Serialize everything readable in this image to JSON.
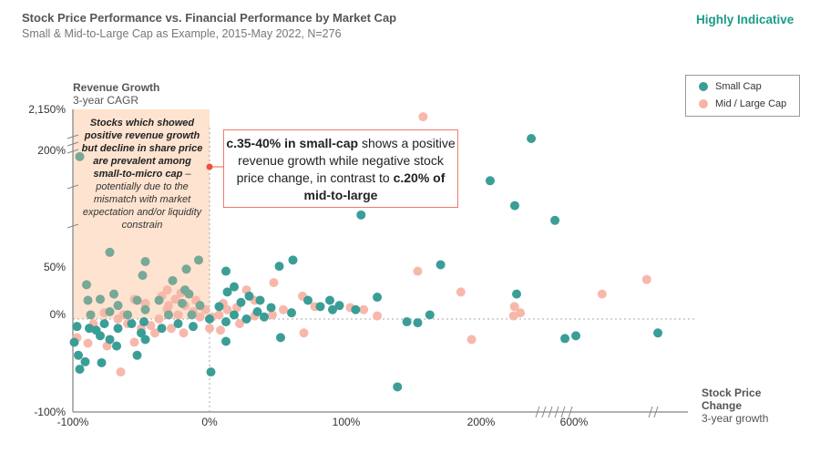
{
  "header": {
    "title": "Stock Price Performance vs. Financial Performance by Market Cap",
    "subtitle": "Small & Mid-to-Large Cap as Example, 2015-May 2022, N=276",
    "badge": "Highly Indicative"
  },
  "colors": {
    "small_cap": "#3a9e96",
    "mid_large_cap": "#f7b4a6",
    "shade": "#fde3d0",
    "callout_border": "#f07a68",
    "badge": "#1a9a8a"
  },
  "note": {
    "bold": "Stocks which showed positive revenue growth but decline in share price are prevalent among small-to-micro cap",
    "rest": " – potentially due to the mismatch with market expectation and/or liquidity constrain"
  },
  "callout": {
    "p1": "c.35-40% in small-cap",
    "p2": " shows a positive revenue growth while negative stock price change, in contrast to ",
    "p3": "c.20% of mid-to-large"
  },
  "chart_data": {
    "type": "scatter",
    "title": "Stock Price Performance vs. Financial Performance by Market Cap",
    "ylabel": "Revenue Growth",
    "ylabel_sub": "3-year CAGR",
    "xlabel": "Stock Price Change",
    "xlabel_sub": "3-year growth",
    "x_ticks": [
      "-100%",
      "0%",
      "100%",
      "200%",
      "600%"
    ],
    "x_tick_values": [
      -100,
      0,
      100,
      200,
      600
    ],
    "y_ticks": [
      "2,150%",
      "200%",
      "50%",
      "0%",
      "-100%"
    ],
    "y_tick_values": [
      2150,
      200,
      50,
      0,
      -100
    ],
    "x_axis_breaks": "between 200% and 600%, and after 600%",
    "y_axis_breaks": "between 50% and 200%, and between 200% and 2,150%",
    "shaded_region": "x<0%, y>0%",
    "legend": {
      "placement": "top-right",
      "entries": [
        "Small Cap",
        "Mid / Large Cap"
      ]
    },
    "series": [
      {
        "name": "Small Cap",
        "color": "#3a9e96",
        "points": [
          [
            416,
            763
          ],
          [
            239,
            161
          ],
          [
            345,
            129
          ],
          [
            518,
            110
          ],
          [
            111,
            117
          ],
          [
            170,
            53
          ],
          [
            61,
            59
          ],
          [
            51,
            51
          ],
          [
            353,
            24
          ],
          [
            123,
            21
          ],
          [
            88,
            18
          ],
          [
            107,
            9
          ],
          [
            153,
            -4
          ],
          [
            145,
            -3
          ],
          [
            162,
            4
          ],
          [
            561,
            -21
          ],
          [
            608,
            -18
          ],
          [
            961,
            -15
          ],
          [
            138,
            -73
          ],
          [
            52,
            -20
          ],
          [
            12,
            -24
          ],
          [
            1,
            -57
          ],
          [
            12,
            46
          ],
          [
            18,
            31
          ],
          [
            13,
            26
          ],
          [
            29,
            22
          ],
          [
            37,
            18
          ],
          [
            45,
            11
          ],
          [
            60,
            6
          ],
          [
            72,
            18
          ],
          [
            81,
            12
          ],
          [
            90,
            9
          ],
          [
            95,
            13
          ],
          [
            7,
            12
          ],
          [
            18,
            4
          ],
          [
            27,
            0
          ],
          [
            12,
            -3
          ],
          [
            40,
            2
          ],
          [
            23,
            16
          ],
          [
            35,
            7
          ],
          [
            -95,
            192
          ],
          [
            -73,
            69
          ],
          [
            -49,
            42
          ],
          [
            -8,
            59
          ],
          [
            -27,
            37
          ],
          [
            -47,
            57
          ],
          [
            -17,
            48
          ],
          [
            -90,
            33
          ],
          [
            -70,
            24
          ],
          [
            -15,
            24
          ],
          [
            -18,
            28
          ],
          [
            -89,
            18
          ],
          [
            -80,
            19
          ],
          [
            -67,
            13
          ],
          [
            -53,
            18
          ],
          [
            -37,
            18
          ],
          [
            -20,
            15
          ],
          [
            -7,
            13
          ],
          [
            -87,
            4
          ],
          [
            -73,
            7
          ],
          [
            -60,
            4
          ],
          [
            -47,
            9
          ],
          [
            -30,
            4
          ],
          [
            -13,
            4
          ],
          [
            -97,
            -8
          ],
          [
            -88,
            -10
          ],
          [
            -83,
            -12
          ],
          [
            -80,
            -18
          ],
          [
            -77,
            -5
          ],
          [
            -73,
            -22
          ],
          [
            -68,
            -29
          ],
          [
            -99,
            -25
          ],
          [
            -96,
            -39
          ],
          [
            -91,
            -46
          ],
          [
            -95,
            -54
          ],
          [
            -79,
            -47
          ],
          [
            -67,
            -10
          ],
          [
            -50,
            -15
          ],
          [
            -47,
            -22
          ],
          [
            -53,
            -39
          ],
          [
            -35,
            -10
          ],
          [
            -23,
            -5
          ],
          [
            -12,
            -8
          ],
          [
            -48,
            -3
          ],
          [
            -57,
            -5
          ],
          [
            0,
            0
          ]
        ]
      },
      {
        "name": "Mid / Large Cap",
        "color": "#f7b4a6",
        "points": [
          [
            157,
            1800
          ],
          [
            153,
            46
          ],
          [
            185,
            26
          ],
          [
            721,
            24
          ],
          [
            913,
            38
          ],
          [
            369,
            6
          ],
          [
            344,
            12
          ],
          [
            340,
            3
          ],
          [
            193,
            -22
          ],
          [
            123,
            3
          ],
          [
            113,
            9
          ],
          [
            103,
            11
          ],
          [
            77,
            12
          ],
          [
            68,
            22
          ],
          [
            54,
            9
          ],
          [
            47,
            35
          ],
          [
            46,
            4
          ],
          [
            69,
            -15
          ],
          [
            33,
            3
          ],
          [
            27,
            28
          ],
          [
            33,
            18
          ],
          [
            10,
            15
          ],
          [
            13,
            9
          ],
          [
            7,
            4
          ],
          [
            22,
            -5
          ],
          [
            8,
            -12
          ],
          [
            20,
            11
          ],
          [
            2,
            2
          ],
          [
            -97,
            -20
          ],
          [
            -89,
            -26
          ],
          [
            -85,
            -5
          ],
          [
            -77,
            6
          ],
          [
            -67,
            0
          ],
          [
            -60,
            -5
          ],
          [
            -75,
            -29
          ],
          [
            -65,
            -57
          ],
          [
            -55,
            -25
          ],
          [
            -50,
            -10
          ],
          [
            -43,
            -7
          ],
          [
            -37,
            0
          ],
          [
            -31,
            9
          ],
          [
            -23,
            4
          ],
          [
            -12,
            7
          ],
          [
            -7,
            2
          ],
          [
            -30,
            13
          ],
          [
            -35,
            22
          ],
          [
            -25,
            19
          ],
          [
            -18,
            13
          ],
          [
            -10,
            18
          ],
          [
            -3,
            9
          ],
          [
            -63,
            4
          ],
          [
            -40,
            -15
          ],
          [
            -28,
            -10
          ],
          [
            -19,
            -15
          ],
          [
            0,
            -10
          ],
          [
            -55,
            19
          ],
          [
            -47,
            15
          ],
          [
            -31,
            28
          ],
          [
            -21,
            25
          ]
        ]
      }
    ]
  }
}
